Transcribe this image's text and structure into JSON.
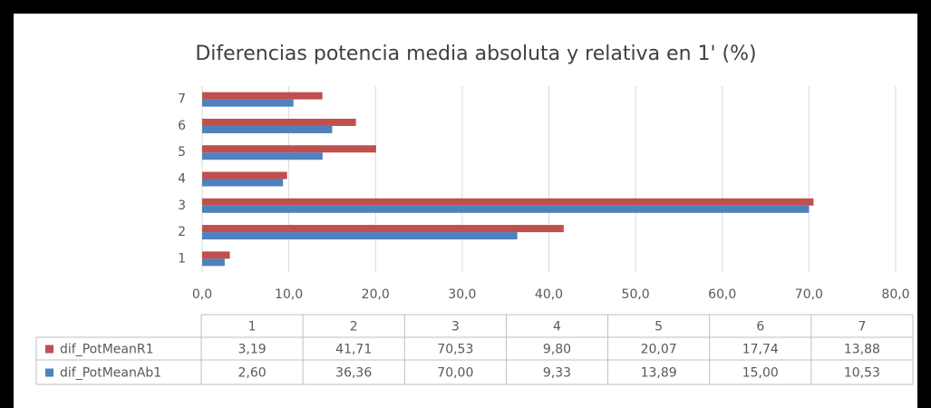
{
  "chart_data": {
    "type": "hbar",
    "title": "Diferencias  potencia media absoluta y relativa en 1' (%)",
    "categories": [
      "1",
      "2",
      "3",
      "4",
      "5",
      "6",
      "7"
    ],
    "series": [
      {
        "name": "dif_PotMeanR1",
        "color": "#c0504d",
        "values": [
          3.19,
          41.71,
          70.53,
          9.8,
          20.07,
          17.74,
          13.88
        ],
        "value_labels": [
          "3,19",
          "41,71",
          "70,53",
          "9,80",
          "20,07",
          "17,74",
          "13,88"
        ]
      },
      {
        "name": "dif_PotMeanAb1",
        "color": "#4f81bd",
        "values": [
          2.6,
          36.36,
          70.0,
          9.33,
          13.89,
          15.0,
          10.53
        ],
        "value_labels": [
          "2,60",
          "36,36",
          "70,00",
          "9,33",
          "13,89",
          "15,00",
          "10,53"
        ]
      }
    ],
    "xlim": [
      0,
      80
    ],
    "xticks": [
      {
        "value": 0,
        "label": "0,0"
      },
      {
        "value": 10,
        "label": "10,0"
      },
      {
        "value": 20,
        "label": "20,0"
      },
      {
        "value": 30,
        "label": "30,0"
      },
      {
        "value": 40,
        "label": "40,0"
      },
      {
        "value": 50,
        "label": "50,0"
      },
      {
        "value": 60,
        "label": "60,0"
      },
      {
        "value": 70,
        "label": "70,0"
      },
      {
        "value": 80,
        "label": "80,0"
      }
    ],
    "grid": true
  }
}
